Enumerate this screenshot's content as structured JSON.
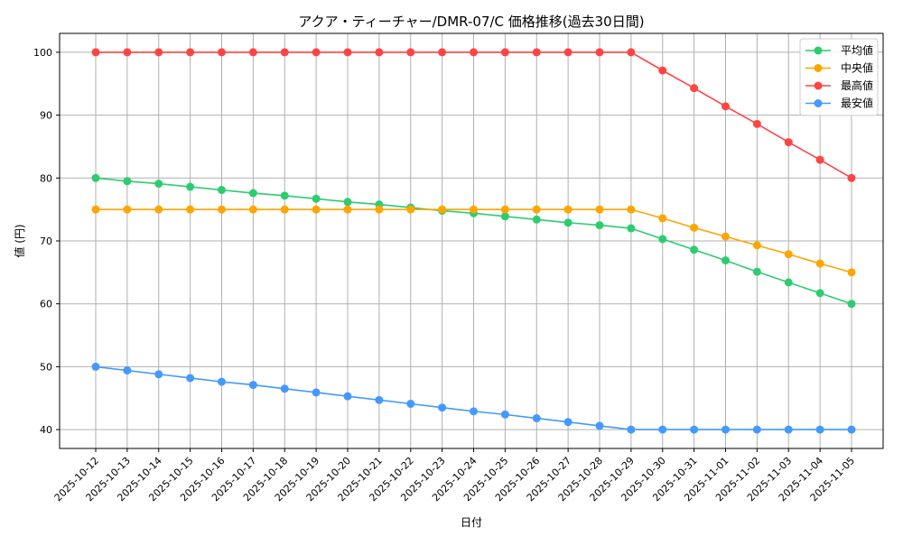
{
  "chart_data": {
    "type": "line",
    "title": "アクア・ティーチャー/DMR-07/C 価格推移(過去30日間)",
    "xlabel": "日付",
    "ylabel": "値 (円)",
    "ylim": [
      37,
      103
    ],
    "yticks": [
      40,
      50,
      60,
      70,
      80,
      90,
      100
    ],
    "grid": true,
    "legend_position": "top-right",
    "x": [
      "2025-10-12",
      "2025-10-13",
      "2025-10-14",
      "2025-10-15",
      "2025-10-16",
      "2025-10-17",
      "2025-10-18",
      "2025-10-19",
      "2025-10-20",
      "2025-10-21",
      "2025-10-22",
      "2025-10-23",
      "2025-10-24",
      "2025-10-25",
      "2025-10-26",
      "2025-10-27",
      "2025-10-28",
      "2025-10-29",
      "2025-10-30",
      "2025-10-31",
      "2025-11-01",
      "2025-11-02",
      "2025-11-03",
      "2025-11-04",
      "2025-11-05"
    ],
    "series": [
      {
        "name": "平均値",
        "color": "#2ecc71",
        "values": [
          80,
          79.5,
          79.1,
          78.6,
          78.1,
          77.6,
          77.2,
          76.7,
          76.2,
          75.8,
          75.3,
          74.8,
          74.4,
          73.9,
          73.4,
          72.9,
          72.5,
          72.0,
          70.3,
          68.6,
          66.9,
          65.1,
          63.4,
          61.7,
          60
        ]
      },
      {
        "name": "中央値",
        "color": "#ffa500",
        "values": [
          75,
          75,
          75,
          75,
          75,
          75,
          75,
          75,
          75,
          75,
          75,
          75,
          75,
          75,
          75,
          75,
          75,
          75,
          73.6,
          72.1,
          70.7,
          69.3,
          67.9,
          66.4,
          65
        ]
      },
      {
        "name": "最高値",
        "color": "#ff4444",
        "values": [
          100,
          100,
          100,
          100,
          100,
          100,
          100,
          100,
          100,
          100,
          100,
          100,
          100,
          100,
          100,
          100,
          100,
          100,
          97.1,
          94.3,
          91.4,
          88.6,
          85.7,
          82.9,
          80
        ]
      },
      {
        "name": "最安値",
        "color": "#4499ff",
        "values": [
          50,
          49.4,
          48.8,
          48.2,
          47.6,
          47.1,
          46.5,
          45.9,
          45.3,
          44.7,
          44.1,
          43.5,
          42.9,
          42.4,
          41.8,
          41.2,
          40.6,
          40,
          40,
          40,
          40,
          40,
          40,
          40,
          40
        ]
      }
    ]
  }
}
